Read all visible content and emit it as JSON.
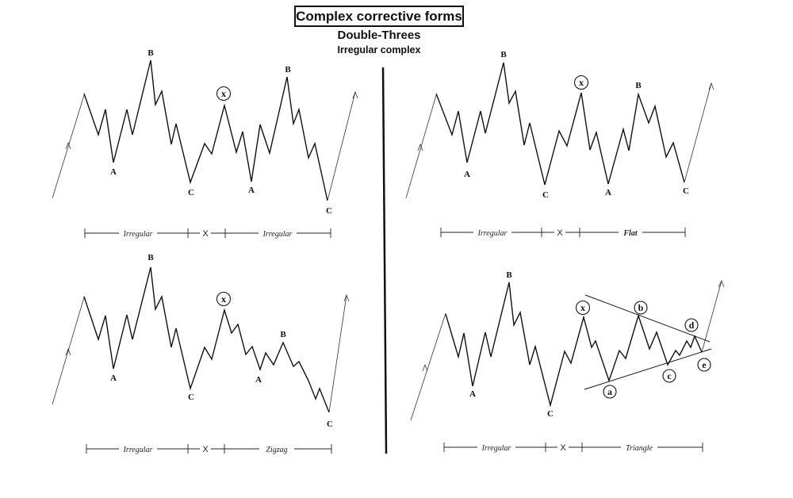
{
  "header": {
    "title": "Complex corrective forms",
    "subtitle": "Double-Threes",
    "subtitle2": "Irregular complex"
  },
  "panels": [
    {
      "id": "top-left",
      "labels": [
        "A",
        "B",
        "C",
        "A",
        "B",
        "C"
      ],
      "circle_label": "x",
      "ruler": {
        "left": "Irregular",
        "middle": "X",
        "right": "Irregular"
      }
    },
    {
      "id": "top-right",
      "labels": [
        "A",
        "B",
        "C",
        "A",
        "B",
        "C"
      ],
      "circle_label": "x",
      "ruler": {
        "left": "Irregular",
        "middle": "X",
        "right": "Flat"
      }
    },
    {
      "id": "bottom-left",
      "labels": [
        "A",
        "B",
        "C",
        "A",
        "B",
        "C"
      ],
      "circle_label": "x",
      "ruler": {
        "left": "Irregular",
        "middle": "X",
        "right": "Zigzag"
      }
    },
    {
      "id": "bottom-right",
      "labels": [
        "A",
        "B",
        "C"
      ],
      "circle_labels": [
        "x",
        "a",
        "b",
        "c",
        "d",
        "e"
      ],
      "ruler": {
        "left": "Irregular",
        "middle": "X",
        "right": "Triangle"
      }
    }
  ]
}
